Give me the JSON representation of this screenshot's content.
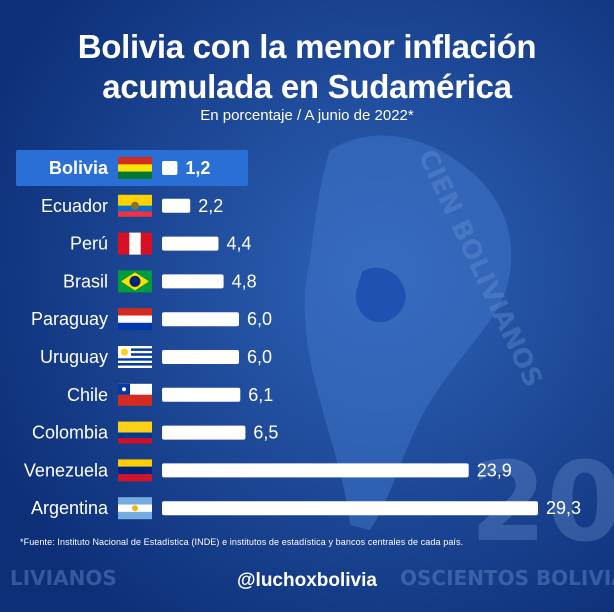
{
  "header": {
    "title_line1": "Bolivia con la menor inflación",
    "title_line2": "acumulada en Sudamérica",
    "subtitle": "En porcentaje / A junio de 2022*"
  },
  "footer": {
    "source": "*Fuente: Instituto Nacional de Estadística (INDE) e institutos de estadística y bancos centrales de cada país.",
    "handle": "@luchoxbolivia"
  },
  "colors": {
    "background": "#123b8c",
    "highlight_row": "#2a6fd6",
    "bar": "#ffffff",
    "text": "#ffffff"
  },
  "chart_data": {
    "type": "bar",
    "orientation": "horizontal",
    "categories": [
      "Bolivia",
      "Ecuador",
      "Perú",
      "Brasil",
      "Paraguay",
      "Uruguay",
      "Chile",
      "Colombia",
      "Venezuela",
      "Argentina"
    ],
    "values": [
      1.2,
      2.2,
      4.4,
      4.8,
      6.0,
      6.0,
      6.1,
      6.5,
      23.9,
      29.3
    ],
    "value_labels": [
      "1,2",
      "2,2",
      "4,4",
      "4,8",
      "6,0",
      "6,0",
      "6,1",
      "6,5",
      "23,9",
      "29,3"
    ],
    "highlighted": "Bolivia",
    "flags": [
      "bolivia-flag",
      "ecuador-flag",
      "peru-flag",
      "brazil-flag",
      "paraguay-flag",
      "uruguay-flag",
      "chile-flag",
      "colombia-flag",
      "venezuela-flag",
      "argentina-flag"
    ],
    "title": "Bolivia con la menor inflación acumulada en Sudamérica",
    "subtitle": "En porcentaje / A junio de 2022*",
    "xlabel": "",
    "ylabel": "",
    "xlim": [
      0,
      29.3
    ],
    "grid": false,
    "legend": "none"
  }
}
